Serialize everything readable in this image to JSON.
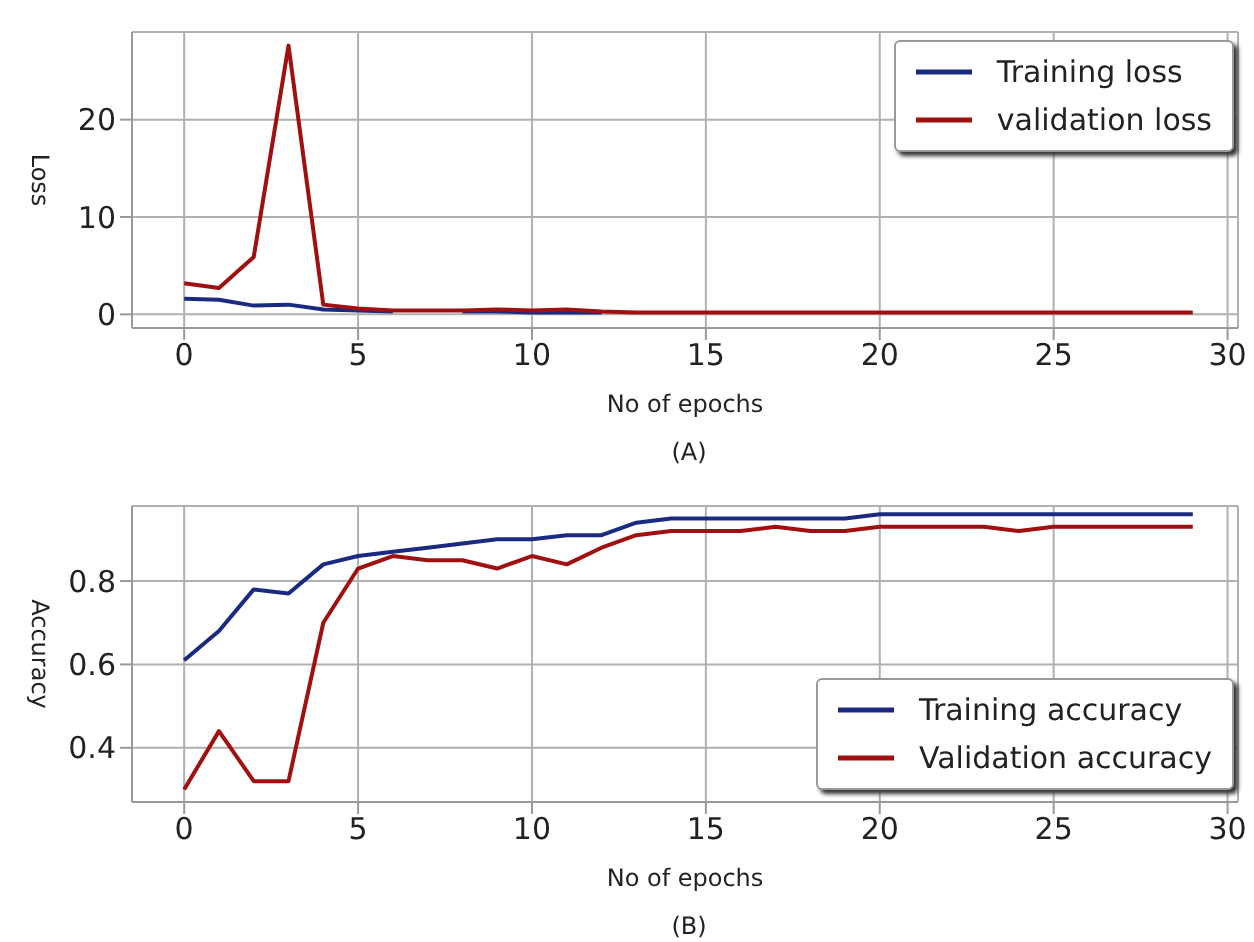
{
  "chart_data": [
    {
      "type": "line",
      "xlabel": "No of epochs",
      "ylabel": "Loss",
      "annotations": [
        "(A)"
      ],
      "x": [
        0,
        1,
        2,
        3,
        4,
        5,
        6,
        7,
        8,
        9,
        10,
        11,
        12,
        13,
        14,
        15,
        16,
        17,
        18,
        19,
        20,
        21,
        22,
        23,
        24,
        25,
        26,
        27,
        28,
        29
      ],
      "series": [
        {
          "name": "Training loss",
          "color": "#1a2a80",
          "values": [
            1.6,
            1.5,
            0.9,
            1.0,
            0.5,
            0.4,
            0.3,
            null,
            0.3,
            0.3,
            0.2,
            0.2,
            0.2,
            null,
            null,
            null,
            null,
            null,
            null,
            null,
            null,
            null,
            null,
            null,
            null,
            null,
            null,
            null,
            null,
            null
          ]
        },
        {
          "name": "validation loss",
          "color": "#a01010",
          "values": [
            3.2,
            2.7,
            5.9,
            27.6,
            1.0,
            0.6,
            0.4,
            0.4,
            0.4,
            0.5,
            0.4,
            0.5,
            0.3,
            0.2,
            0.2,
            0.2,
            0.2,
            0.2,
            0.2,
            0.2,
            0.2,
            0.2,
            0.2,
            0.2,
            0.2,
            0.2,
            0.2,
            0.2,
            0.2,
            0.2
          ]
        }
      ],
      "xlim": [
        -1.5,
        30.3
      ],
      "xticks": [
        0,
        5,
        10,
        15,
        20,
        25,
        30
      ],
      "ylim": [
        -1.4,
        29
      ],
      "yticks": [
        0,
        10,
        20
      ],
      "grid": true,
      "legend": "top right",
      "marker": "none",
      "line_style": "solid"
    },
    {
      "type": "line",
      "xlabel": "No of epochs",
      "ylabel": "Accuracy",
      "annotations": [
        "(B)"
      ],
      "x": [
        0,
        1,
        2,
        3,
        4,
        5,
        6,
        7,
        8,
        9,
        10,
        11,
        12,
        13,
        14,
        15,
        16,
        17,
        18,
        19,
        20,
        21,
        22,
        23,
        24,
        25,
        26,
        27,
        28,
        29
      ],
      "series": [
        {
          "name": "Training accuracy",
          "color": "#1a2a80",
          "values": [
            0.61,
            0.68,
            0.78,
            0.77,
            0.84,
            0.86,
            0.87,
            0.88,
            0.89,
            0.9,
            0.9,
            0.91,
            0.91,
            0.94,
            0.95,
            0.95,
            0.95,
            0.95,
            0.95,
            0.95,
            0.96,
            0.96,
            0.96,
            0.96,
            0.96,
            0.96,
            0.96,
            0.96,
            0.96,
            0.96
          ]
        },
        {
          "name": "Validation accuracy",
          "color": "#a01010",
          "values": [
            0.3,
            0.44,
            0.32,
            0.32,
            0.7,
            0.83,
            0.86,
            0.85,
            0.85,
            0.83,
            0.86,
            0.84,
            0.88,
            0.91,
            0.92,
            0.92,
            0.92,
            0.93,
            0.92,
            0.92,
            0.93,
            0.93,
            0.93,
            0.93,
            0.92,
            0.93,
            0.93,
            0.93,
            0.93,
            0.93
          ]
        }
      ],
      "xlim": [
        -1.5,
        30.3
      ],
      "xticks": [
        0,
        5,
        10,
        15,
        20,
        25,
        30
      ],
      "ylim": [
        0.27,
        0.98
      ],
      "yticks": [
        0.4,
        0.6,
        0.8
      ],
      "grid": true,
      "legend": "bottom right",
      "marker": "none",
      "line_style": "solid"
    }
  ]
}
